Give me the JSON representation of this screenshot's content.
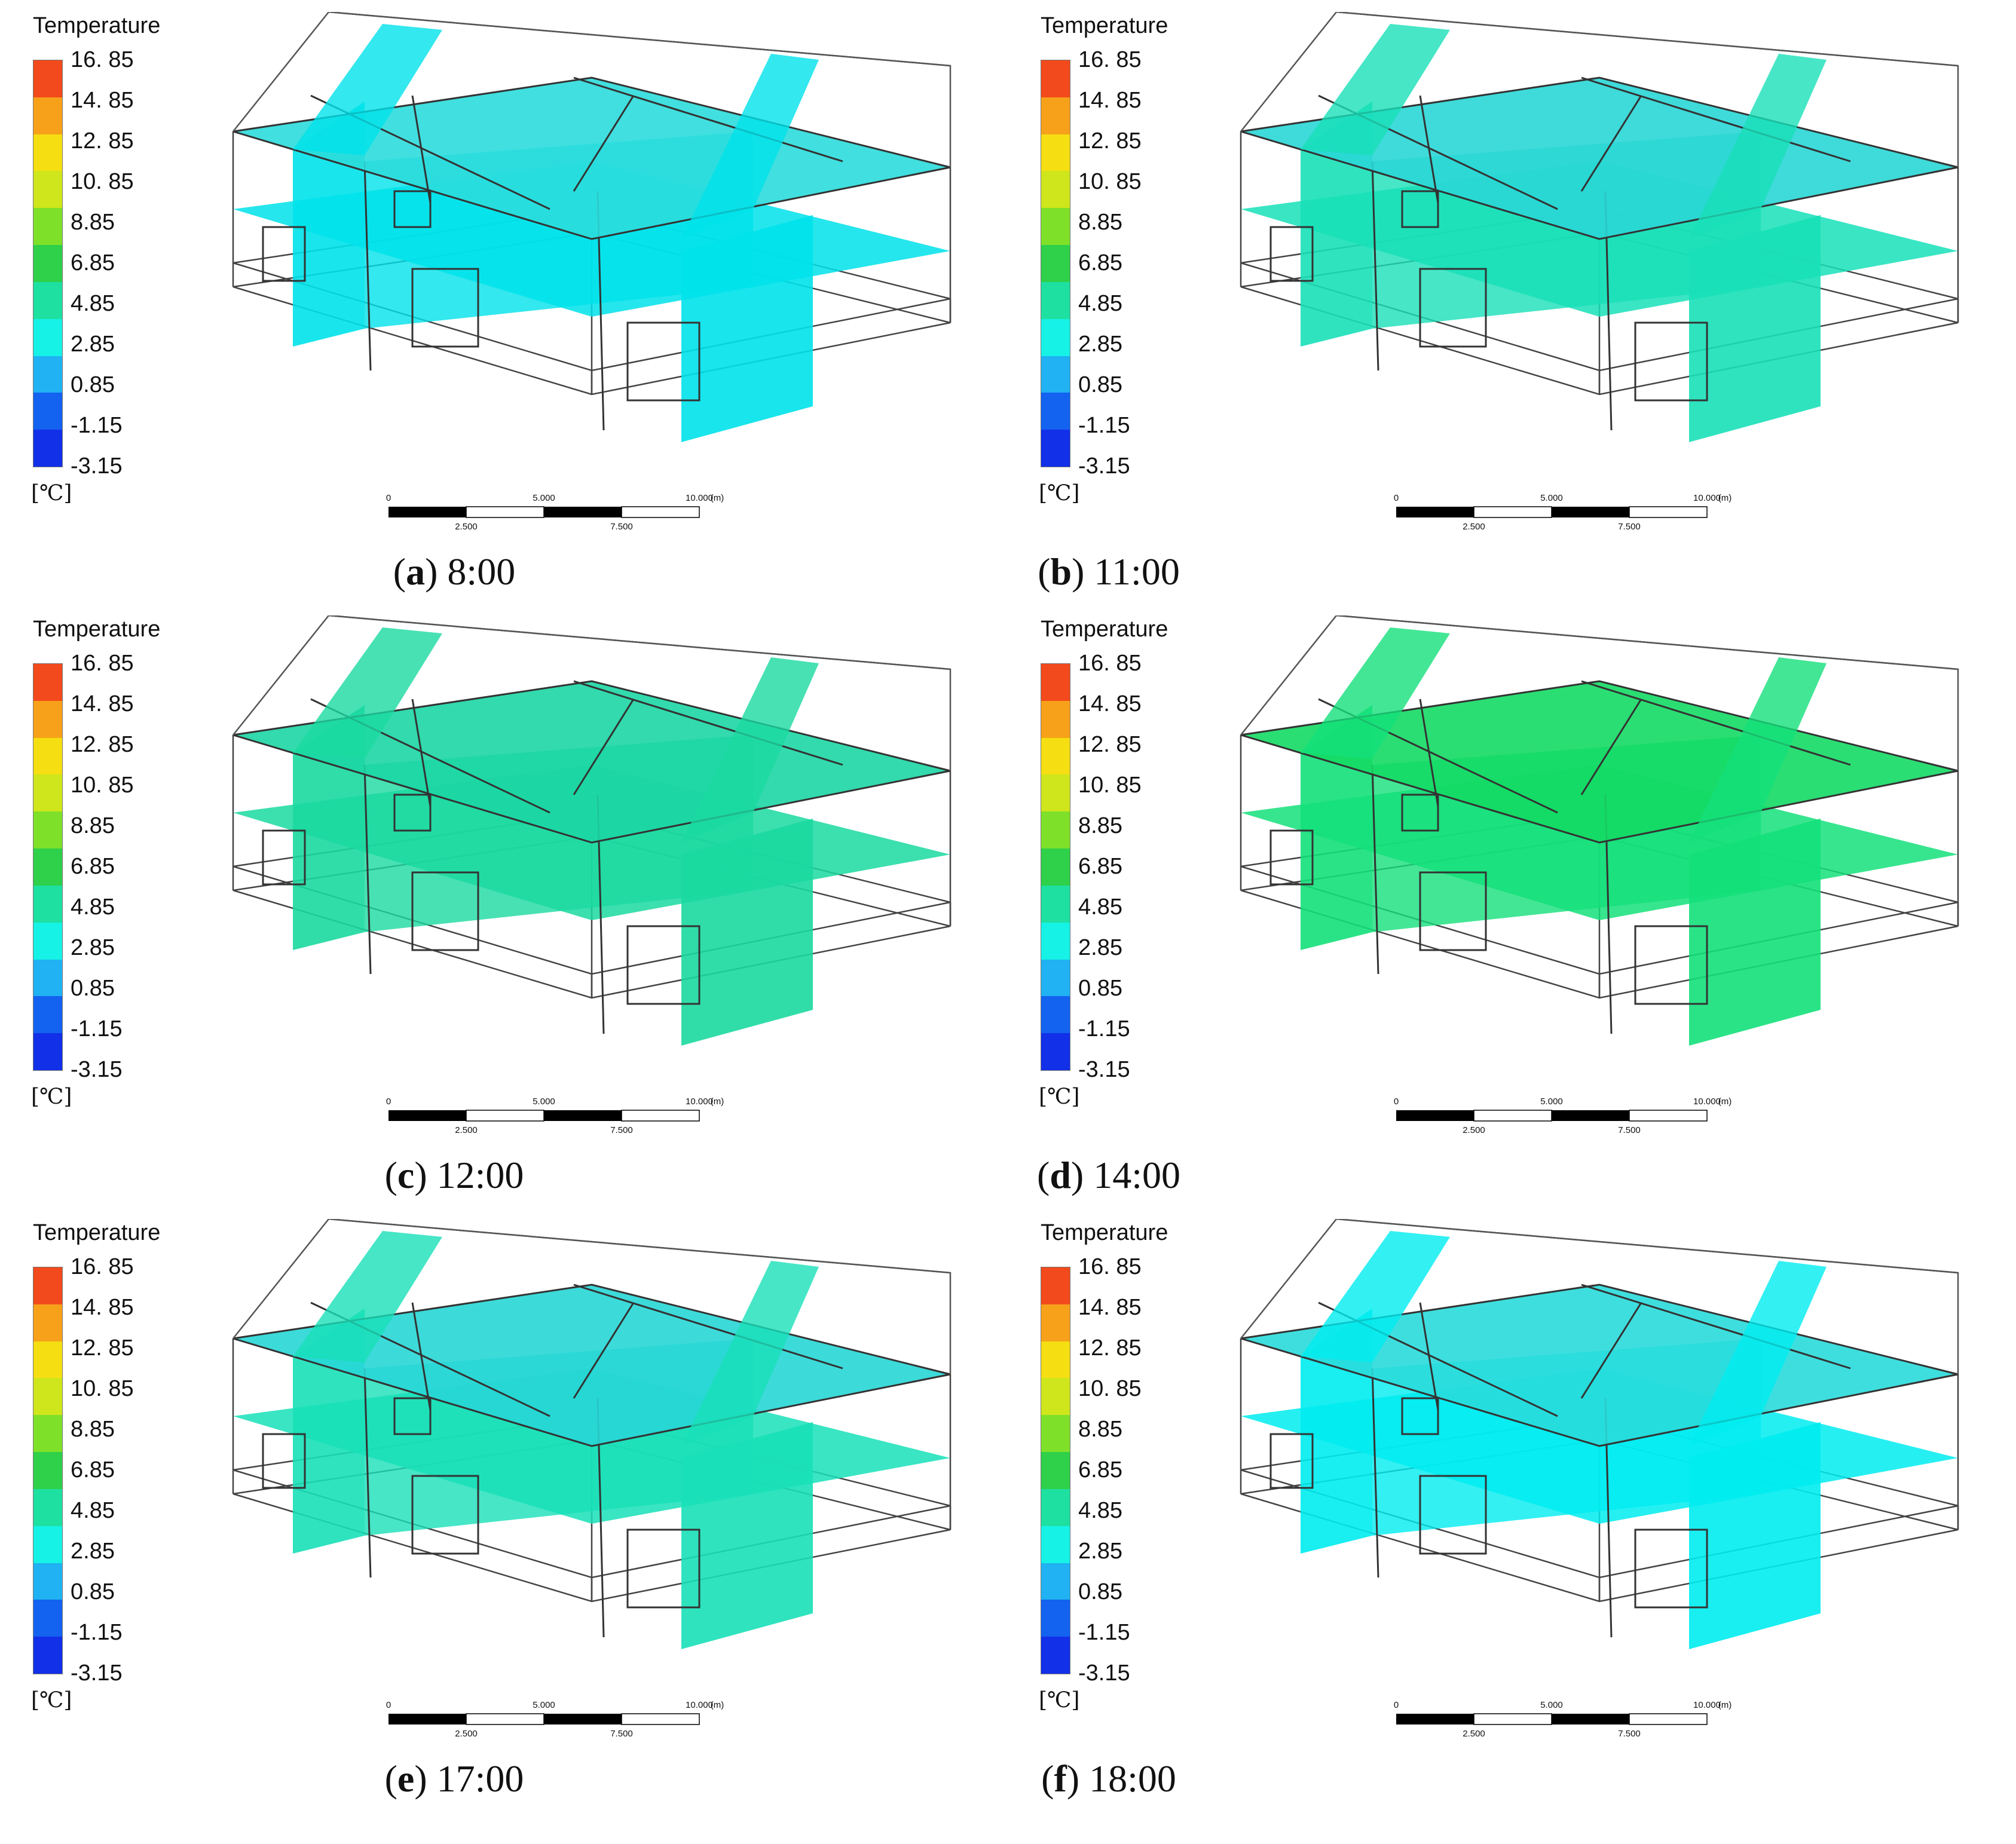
{
  "legend": {
    "title": "Temperature",
    "unit": "[℃]",
    "ticks": [
      "16. 85",
      "14. 85",
      "12. 85",
      "10. 85",
      "8.85",
      "6.85",
      "4.85",
      "2.85",
      "0.85",
      "-1.15",
      "-3.15"
    ],
    "colors": [
      "#f24a1c",
      "#f7a11a",
      "#f5df12",
      "#cfe61c",
      "#7fe02a",
      "#2fd04a",
      "#1ee0a0",
      "#16f2e6",
      "#20b2f2",
      "#1462f0",
      "#1230e8"
    ]
  },
  "scale_bar": {
    "top_labels": [
      "0",
      "5.000",
      "10.000"
    ],
    "bottom_labels": [
      "2.500",
      "7.500"
    ],
    "unit": "(m)"
  },
  "panels": [
    {
      "letter": "a",
      "time": "8:00",
      "fill_color": "#00e2ea",
      "roof_color": "#2cdcdc"
    },
    {
      "letter": "b",
      "time": "11:00",
      "fill_color": "#18e0b8",
      "roof_color": "#2ad6d6"
    },
    {
      "letter": "c",
      "time": "12:00",
      "fill_color": "#1ad9a0",
      "roof_color": "#1cd6a4"
    },
    {
      "letter": "d",
      "time": "14:00",
      "fill_color": "#14e07a",
      "roof_color": "#14da64"
    },
    {
      "letter": "e",
      "time": "17:00",
      "fill_color": "#18e0b8",
      "roof_color": "#28d6d6"
    },
    {
      "letter": "f",
      "time": "18:00",
      "fill_color": "#00ecf0",
      "roof_color": "#2adada"
    }
  ]
}
